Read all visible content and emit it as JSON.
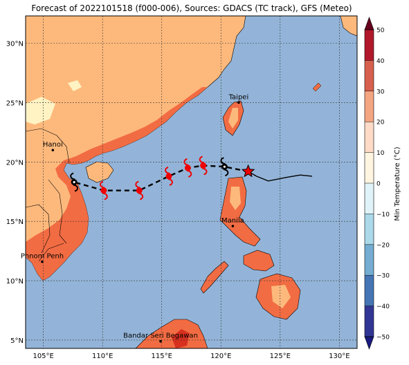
{
  "title": "Forecast of 2022101518 (f000-006), Sources: GDACS (TC track), GFS (Meteo)",
  "map": {
    "lon_range": [
      103.5,
      131.5
    ],
    "lat_range": [
      4.3,
      32.3
    ],
    "ocean_color": "#93b4d8",
    "land_colors": {
      "10_to_20": "#fdb97c",
      "20_to_30": "#f26c43",
      "0_to_10": "#fff3c4",
      "30_to_40": "#d7301f"
    },
    "grid": true,
    "lon_ticks": [
      {
        "value": 105,
        "label": "105°E"
      },
      {
        "value": 110,
        "label": "110°E"
      },
      {
        "value": 115,
        "label": "115°E"
      },
      {
        "value": 120,
        "label": "120°E"
      },
      {
        "value": 125,
        "label": "125°E"
      },
      {
        "value": 130,
        "label": "130°E"
      }
    ],
    "lat_ticks": [
      {
        "value": 5,
        "label": "5°N"
      },
      {
        "value": 10,
        "label": "10°N"
      },
      {
        "value": 15,
        "label": "15°N"
      },
      {
        "value": 20,
        "label": "20°N"
      },
      {
        "value": 25,
        "label": "25°N"
      },
      {
        "value": 30,
        "label": "30°N"
      }
    ],
    "cities": [
      {
        "name": "Taipei",
        "lon": 121.5,
        "lat": 25.0
      },
      {
        "name": "Hanoi",
        "lon": 105.8,
        "lat": 21.0
      },
      {
        "name": "Manila",
        "lon": 121.0,
        "lat": 14.6
      },
      {
        "name": "Phnom Penh",
        "lon": 104.9,
        "lat": 11.6
      },
      {
        "name": "Bandar Seri Begawan",
        "lon": 114.9,
        "lat": 4.9
      }
    ]
  },
  "track": {
    "past_color": "#000000",
    "forecast_color": "#000000",
    "storm_icon_color": "#ee0000",
    "current_position": {
      "lon": 122.3,
      "lat": 19.2
    },
    "past_track": [
      {
        "lon": 127.7,
        "lat": 18.8
      },
      {
        "lon": 126.7,
        "lat": 18.9
      },
      {
        "lon": 125.5,
        "lat": 18.7
      },
      {
        "lon": 124.0,
        "lat": 18.4
      },
      {
        "lon": 123.0,
        "lat": 18.8
      },
      {
        "lon": 122.3,
        "lat": 19.2
      }
    ],
    "forecast_track": [
      {
        "lon": 122.3,
        "lat": 19.2,
        "icon": "none"
      },
      {
        "lon": 120.3,
        "lat": 19.6,
        "icon": "black"
      },
      {
        "lon": 118.5,
        "lat": 19.7,
        "icon": "red"
      },
      {
        "lon": 117.2,
        "lat": 19.5,
        "icon": "red"
      },
      {
        "lon": 115.6,
        "lat": 18.8,
        "icon": "red"
      },
      {
        "lon": 113.1,
        "lat": 17.6,
        "icon": "red"
      },
      {
        "lon": 110.1,
        "lat": 17.6,
        "icon": "red"
      },
      {
        "lon": 107.6,
        "lat": 18.3,
        "icon": "black"
      }
    ]
  },
  "colorbar": {
    "label": "Min Temperature (°C)",
    "ticks": [
      "50",
      "40",
      "30",
      "20",
      "10",
      "0",
      "−10",
      "−20",
      "−30",
      "−40",
      "−50"
    ],
    "colors": [
      "#67001f",
      "#b2182b",
      "#d6604d",
      "#f4a582",
      "#fddbc7",
      "#fff5e0",
      "#e0f3f8",
      "#abd9e9",
      "#74add1",
      "#4575b4",
      "#313695",
      "#1a1a80"
    ]
  }
}
